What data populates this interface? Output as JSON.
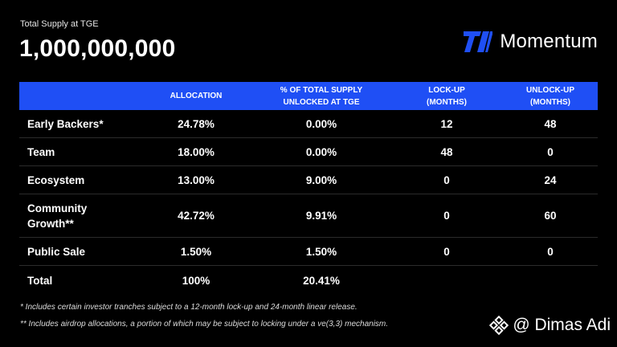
{
  "supply": {
    "label": "Total Supply at TGE",
    "value": "1,000,000,000"
  },
  "brand": {
    "name": "Momentum",
    "icon": "momentum-logo",
    "color": "#1f4ff5"
  },
  "table": {
    "header_color": "#1f4ff5",
    "headers": [
      "",
      "ALLOCATION",
      "% OF TOTAL SUPPLY\nUNLOCKED AT TGE",
      "LOCK-UP\n(MONTHS)",
      "UNLOCK-UP\n(MONTHS)"
    ],
    "rows": [
      {
        "name": "Early Backers*",
        "allocation": "24.78%",
        "unlocked_at_tge": "0.00%",
        "lockup": "12",
        "unlock": "48"
      },
      {
        "name": "Team",
        "allocation": "18.00%",
        "unlocked_at_tge": "0.00%",
        "lockup": "48",
        "unlock": "0"
      },
      {
        "name": "Ecosystem",
        "allocation": "13.00%",
        "unlocked_at_tge": "9.00%",
        "lockup": "0",
        "unlock": "24"
      },
      {
        "name": "Community\nGrowth**",
        "allocation": "42.72%",
        "unlocked_at_tge": "9.91%",
        "lockup": "0",
        "unlock": "60"
      },
      {
        "name": "Public Sale",
        "allocation": "1.50%",
        "unlocked_at_tge": "1.50%",
        "lockup": "0",
        "unlock": "0"
      },
      {
        "name": "Total",
        "allocation": "100%",
        "unlocked_at_tge": "20.41%",
        "lockup": "",
        "unlock": ""
      }
    ]
  },
  "footnotes": [
    "* Includes certain investor tranches subject to a 12-month lock-up and 24-month linear release.",
    "** Includes airdrop allocations, a portion of which may be subject to locking under a ve(3,3) mechanism."
  ],
  "watermark": {
    "text": "@ Dimas Adi",
    "icon": "binance-diamond-icon"
  }
}
